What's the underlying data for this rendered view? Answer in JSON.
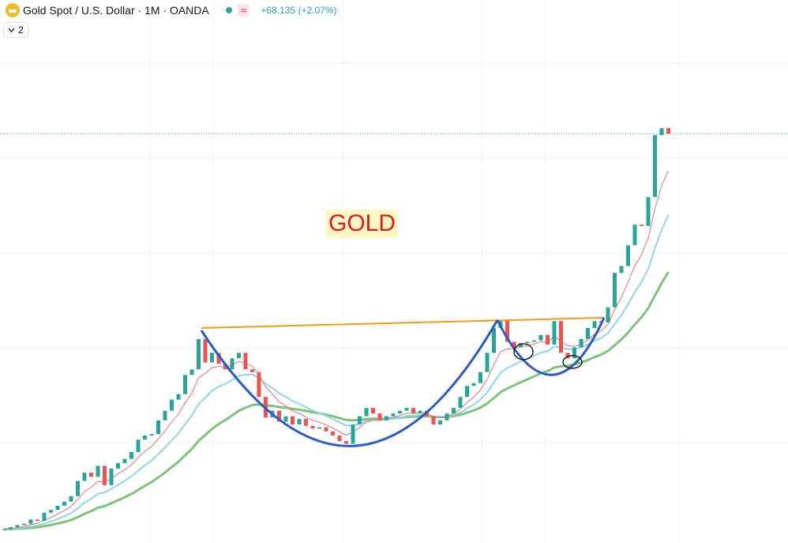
{
  "header": {
    "symbol": "Gold Spot / U.S. Dollar · 1M · OANDA",
    "status_icon": "≈",
    "change": "+68.135 (+2.07%)",
    "indicator_count": "2"
  },
  "annotation": "GOLD",
  "chart_data": {
    "type": "candlestick",
    "values": [
      440,
      455,
      470,
      480,
      510,
      500,
      560,
      580,
      610,
      640,
      680,
      790,
      850,
      820,
      900,
      760,
      880,
      920,
      950,
      1000,
      1090,
      1120,
      1130,
      1230,
      1300,
      1380,
      1420,
      1560,
      1600,
      1820,
      1650,
      1720,
      1640,
      1600,
      1680,
      1720,
      1600,
      1580,
      1400,
      1250,
      1300,
      1220,
      1260,
      1200,
      1240,
      1190,
      1170,
      1180,
      1150,
      1120,
      1080,
      1060,
      1200,
      1260,
      1320,
      1280,
      1230,
      1260,
      1280,
      1300,
      1320,
      1280,
      1300,
      1260,
      1200,
      1230,
      1280,
      1320,
      1400,
      1480,
      1500,
      1580,
      1720,
      1900,
      1960,
      1800,
      1760,
      1790,
      1800,
      1810,
      1850,
      1780,
      1950,
      1720,
      1680,
      1760,
      1820,
      1900,
      1950,
      1940,
      2050,
      2300,
      2350,
      2500,
      2650,
      2640,
      2850,
      3300,
      3350,
      3310
    ],
    "ylim": [
      340,
      4280
    ],
    "colors": {
      "up": "#26a69a",
      "down": "#ef5350"
    }
  }
}
